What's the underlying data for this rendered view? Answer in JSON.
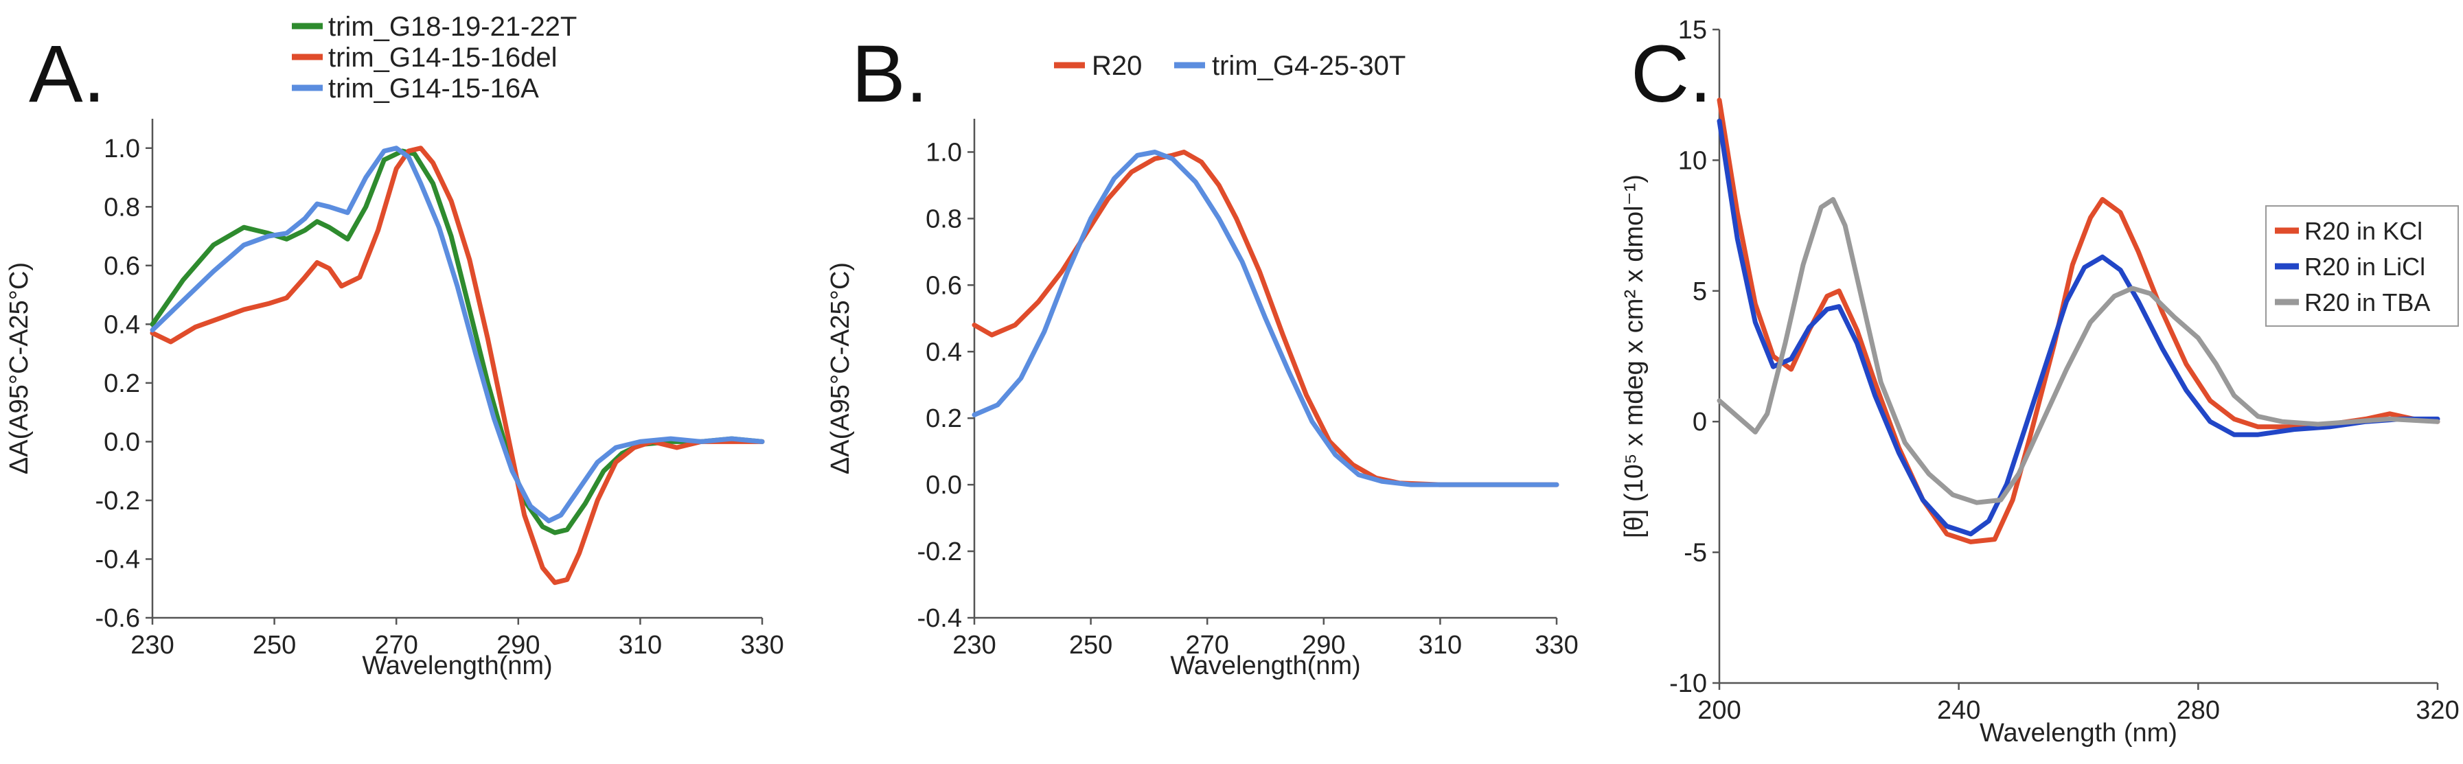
{
  "chart_data": [
    {
      "panel": "A.",
      "type": "line",
      "title": "",
      "xlabel": "Wavelength(nm)",
      "ylabel": "ΔA(A95°C-A25°C)",
      "xlim": [
        230,
        330
      ],
      "ylim": [
        -0.6,
        1.1
      ],
      "xticks": [
        230,
        250,
        270,
        290,
        310,
        330
      ],
      "xtick_labels": [
        "230",
        "250",
        "270",
        "290",
        "310",
        "330"
      ],
      "yticks": [
        -0.6,
        -0.4,
        -0.2,
        0.0,
        0.2,
        0.4,
        0.6,
        0.8,
        1.0
      ],
      "ytick_labels": [
        "-0.6",
        "-0.4",
        "-0.2",
        "0.0",
        "0.2",
        "0.4",
        "0.6",
        "0.8",
        "1.0"
      ],
      "legend_position": "top",
      "series": [
        {
          "name": "trim_G18-19-21-22T",
          "color": "#2e8b2e",
          "points": [
            [
              230,
              0.4
            ],
            [
              235,
              0.55
            ],
            [
              240,
              0.67
            ],
            [
              245,
              0.73
            ],
            [
              249,
              0.71
            ],
            [
              252,
              0.69
            ],
            [
              255,
              0.72
            ],
            [
              257,
              0.75
            ],
            [
              259,
              0.73
            ],
            [
              262,
              0.69
            ],
            [
              265,
              0.8
            ],
            [
              268,
              0.96
            ],
            [
              271,
              0.99
            ],
            [
              273,
              0.98
            ],
            [
              276,
              0.88
            ],
            [
              279,
              0.7
            ],
            [
              282,
              0.45
            ],
            [
              285,
              0.2
            ],
            [
              288,
              -0.02
            ],
            [
              291,
              -0.2
            ],
            [
              294,
              -0.29
            ],
            [
              296,
              -0.31
            ],
            [
              298,
              -0.3
            ],
            [
              301,
              -0.21
            ],
            [
              304,
              -0.1
            ],
            [
              307,
              -0.04
            ],
            [
              310,
              -0.01
            ],
            [
              315,
              0.0
            ],
            [
              320,
              0.0
            ],
            [
              325,
              0.01
            ],
            [
              330,
              0.0
            ]
          ]
        },
        {
          "name": "trim_G14-15-16del",
          "color": "#e04c2b",
          "points": [
            [
              230,
              0.37
            ],
            [
              233,
              0.34
            ],
            [
              237,
              0.39
            ],
            [
              241,
              0.42
            ],
            [
              245,
              0.45
            ],
            [
              249,
              0.47
            ],
            [
              252,
              0.49
            ],
            [
              255,
              0.56
            ],
            [
              257,
              0.61
            ],
            [
              259,
              0.59
            ],
            [
              261,
              0.53
            ],
            [
              264,
              0.56
            ],
            [
              267,
              0.72
            ],
            [
              270,
              0.93
            ],
            [
              272,
              0.99
            ],
            [
              274,
              1.0
            ],
            [
              276,
              0.95
            ],
            [
              279,
              0.82
            ],
            [
              282,
              0.62
            ],
            [
              285,
              0.35
            ],
            [
              288,
              0.05
            ],
            [
              291,
              -0.25
            ],
            [
              294,
              -0.43
            ],
            [
              296,
              -0.48
            ],
            [
              298,
              -0.47
            ],
            [
              300,
              -0.38
            ],
            [
              303,
              -0.2
            ],
            [
              306,
              -0.07
            ],
            [
              309,
              -0.02
            ],
            [
              312,
              0.0
            ],
            [
              316,
              -0.02
            ],
            [
              320,
              0.0
            ],
            [
              325,
              0.0
            ],
            [
              330,
              0.0
            ]
          ]
        },
        {
          "name": "trim_G14-15-16A",
          "color": "#5b8ddf",
          "points": [
            [
              230,
              0.38
            ],
            [
              235,
              0.48
            ],
            [
              240,
              0.58
            ],
            [
              245,
              0.67
            ],
            [
              249,
              0.7
            ],
            [
              252,
              0.71
            ],
            [
              255,
              0.76
            ],
            [
              257,
              0.81
            ],
            [
              259,
              0.8
            ],
            [
              262,
              0.78
            ],
            [
              265,
              0.9
            ],
            [
              268,
              0.99
            ],
            [
              270,
              1.0
            ],
            [
              272,
              0.97
            ],
            [
              274,
              0.88
            ],
            [
              277,
              0.73
            ],
            [
              280,
              0.53
            ],
            [
              283,
              0.3
            ],
            [
              286,
              0.08
            ],
            [
              289,
              -0.1
            ],
            [
              292,
              -0.22
            ],
            [
              295,
              -0.27
            ],
            [
              297,
              -0.25
            ],
            [
              300,
              -0.16
            ],
            [
              303,
              -0.07
            ],
            [
              306,
              -0.02
            ],
            [
              310,
              0.0
            ],
            [
              315,
              0.01
            ],
            [
              320,
              0.0
            ],
            [
              325,
              0.01
            ],
            [
              330,
              0.0
            ]
          ]
        }
      ]
    },
    {
      "panel": "B.",
      "type": "line",
      "title": "",
      "xlabel": "Wavelength(nm)",
      "ylabel": "ΔA(A95°C-A25°C)",
      "xlim": [
        230,
        330
      ],
      "ylim": [
        -0.4,
        1.1
      ],
      "xticks": [
        230,
        250,
        270,
        290,
        310,
        330
      ],
      "xtick_labels": [
        "230",
        "250",
        "270",
        "290",
        "310",
        "330"
      ],
      "yticks": [
        -0.4,
        -0.2,
        0.0,
        0.2,
        0.4,
        0.6,
        0.8,
        1.0
      ],
      "ytick_labels": [
        "-0.4",
        "-0.2",
        "0.0",
        "0.2",
        "0.4",
        "0.6",
        "0.8",
        "1.0"
      ],
      "legend_position": "top",
      "series": [
        {
          "name": "R20",
          "color": "#e04c2b",
          "points": [
            [
              230,
              0.48
            ],
            [
              233,
              0.45
            ],
            [
              237,
              0.48
            ],
            [
              241,
              0.55
            ],
            [
              245,
              0.64
            ],
            [
              249,
              0.75
            ],
            [
              253,
              0.86
            ],
            [
              257,
              0.94
            ],
            [
              261,
              0.98
            ],
            [
              264,
              0.99
            ],
            [
              266,
              1.0
            ],
            [
              269,
              0.97
            ],
            [
              272,
              0.9
            ],
            [
              275,
              0.8
            ],
            [
              279,
              0.64
            ],
            [
              283,
              0.45
            ],
            [
              287,
              0.27
            ],
            [
              291,
              0.13
            ],
            [
              295,
              0.06
            ],
            [
              299,
              0.02
            ],
            [
              303,
              0.005
            ],
            [
              310,
              0.0
            ],
            [
              320,
              0.0
            ],
            [
              330,
              0.0
            ]
          ]
        },
        {
          "name": "trim_G4-25-30T",
          "color": "#5b8ddf",
          "points": [
            [
              230,
              0.21
            ],
            [
              234,
              0.24
            ],
            [
              238,
              0.32
            ],
            [
              242,
              0.46
            ],
            [
              246,
              0.64
            ],
            [
              250,
              0.8
            ],
            [
              254,
              0.92
            ],
            [
              258,
              0.99
            ],
            [
              261,
              1.0
            ],
            [
              264,
              0.98
            ],
            [
              268,
              0.91
            ],
            [
              272,
              0.8
            ],
            [
              276,
              0.67
            ],
            [
              280,
              0.5
            ],
            [
              284,
              0.34
            ],
            [
              288,
              0.19
            ],
            [
              292,
              0.09
            ],
            [
              296,
              0.03
            ],
            [
              300,
              0.01
            ],
            [
              305,
              0.0
            ],
            [
              310,
              0.0
            ],
            [
              320,
              0.0
            ],
            [
              330,
              0.0
            ]
          ]
        }
      ]
    },
    {
      "panel": "C.",
      "type": "line",
      "title": "",
      "xlabel": "Wavelength (nm)",
      "ylabel": "[θ] (10⁵ x mdeg x cm² x dmol⁻¹)",
      "xlim": [
        200,
        320
      ],
      "ylim": [
        -10,
        15
      ],
      "xticks": [
        200,
        240,
        280,
        320
      ],
      "xtick_labels": [
        "200",
        "240",
        "280",
        "320"
      ],
      "yticks": [
        -10,
        -5,
        0,
        5,
        10,
        15
      ],
      "ytick_labels": [
        "-10",
        "-5",
        "0",
        "5",
        "10",
        "15"
      ],
      "legend_position": "right",
      "series": [
        {
          "name": "R20 in KCl",
          "color": "#e04c2b",
          "points": [
            [
              200,
              12.3
            ],
            [
              203,
              8.0
            ],
            [
              206,
              4.5
            ],
            [
              209,
              2.5
            ],
            [
              212,
              2.0
            ],
            [
              215,
              3.5
            ],
            [
              218,
              4.8
            ],
            [
              220,
              5.0
            ],
            [
              223,
              3.5
            ],
            [
              226,
              1.5
            ],
            [
              230,
              -1.0
            ],
            [
              234,
              -3.0
            ],
            [
              238,
              -4.3
            ],
            [
              242,
              -4.6
            ],
            [
              246,
              -4.5
            ],
            [
              249,
              -3.0
            ],
            [
              252,
              -0.5
            ],
            [
              256,
              3.0
            ],
            [
              259,
              6.0
            ],
            [
              262,
              7.8
            ],
            [
              264,
              8.5
            ],
            [
              267,
              8.0
            ],
            [
              270,
              6.5
            ],
            [
              274,
              4.2
            ],
            [
              278,
              2.2
            ],
            [
              282,
              0.8
            ],
            [
              286,
              0.1
            ],
            [
              290,
              -0.2
            ],
            [
              296,
              -0.2
            ],
            [
              302,
              -0.1
            ],
            [
              308,
              0.1
            ],
            [
              312,
              0.3
            ],
            [
              316,
              0.1
            ],
            [
              320,
              0.0
            ]
          ]
        },
        {
          "name": "R20 in LiCl",
          "color": "#2146c7",
          "points": [
            [
              200,
              11.5
            ],
            [
              203,
              7.0
            ],
            [
              206,
              3.8
            ],
            [
              209,
              2.1
            ],
            [
              212,
              2.4
            ],
            [
              215,
              3.6
            ],
            [
              218,
              4.3
            ],
            [
              220,
              4.4
            ],
            [
              223,
              3.0
            ],
            [
              226,
              1.0
            ],
            [
              230,
              -1.2
            ],
            [
              234,
              -3.0
            ],
            [
              238,
              -4.0
            ],
            [
              242,
              -4.3
            ],
            [
              245,
              -3.8
            ],
            [
              248,
              -2.4
            ],
            [
              251,
              -0.3
            ],
            [
              255,
              2.5
            ],
            [
              258,
              4.6
            ],
            [
              261,
              5.9
            ],
            [
              264,
              6.3
            ],
            [
              267,
              5.8
            ],
            [
              270,
              4.6
            ],
            [
              274,
              2.8
            ],
            [
              278,
              1.2
            ],
            [
              282,
              0.0
            ],
            [
              286,
              -0.5
            ],
            [
              290,
              -0.5
            ],
            [
              296,
              -0.3
            ],
            [
              302,
              -0.2
            ],
            [
              308,
              0.0
            ],
            [
              314,
              0.1
            ],
            [
              320,
              0.1
            ]
          ]
        },
        {
          "name": "R20 in TBA",
          "color": "#999999",
          "points": [
            [
              200,
              0.8
            ],
            [
              203,
              0.2
            ],
            [
              206,
              -0.4
            ],
            [
              208,
              0.3
            ],
            [
              211,
              3.0
            ],
            [
              214,
              6.0
            ],
            [
              217,
              8.2
            ],
            [
              219,
              8.5
            ],
            [
              221,
              7.5
            ],
            [
              224,
              4.5
            ],
            [
              227,
              1.5
            ],
            [
              231,
              -0.8
            ],
            [
              235,
              -2.0
            ],
            [
              239,
              -2.8
            ],
            [
              243,
              -3.1
            ],
            [
              247,
              -3.0
            ],
            [
              250,
              -2.0
            ],
            [
              254,
              0.0
            ],
            [
              258,
              2.0
            ],
            [
              262,
              3.8
            ],
            [
              266,
              4.8
            ],
            [
              269,
              5.1
            ],
            [
              272,
              4.9
            ],
            [
              276,
              4.0
            ],
            [
              280,
              3.2
            ],
            [
              283,
              2.2
            ],
            [
              286,
              1.0
            ],
            [
              290,
              0.2
            ],
            [
              294,
              0.0
            ],
            [
              300,
              -0.1
            ],
            [
              306,
              0.0
            ],
            [
              312,
              0.1
            ],
            [
              320,
              0.0
            ]
          ]
        }
      ]
    }
  ]
}
